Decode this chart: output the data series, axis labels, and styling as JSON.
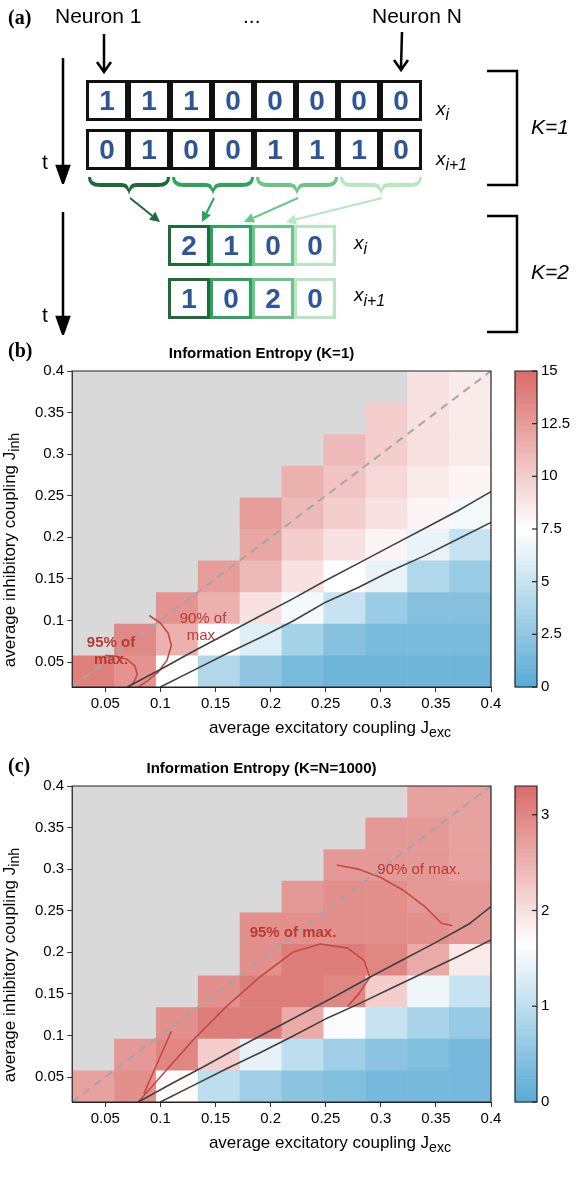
{
  "chart_data": [
    {
      "type": "other",
      "annotations": [
        "(a)",
        "Neuron 1",
        "...",
        "Neuron N",
        "t",
        "t",
        "K=1",
        "K=2",
        "x$_{i}$",
        "x$_{i+1}$",
        "x$_{i}$",
        "x$_{i+1}$",
        "1",
        "1",
        "1",
        "0",
        "0",
        "0",
        "0",
        "0",
        "0",
        "1",
        "0",
        "0",
        "1",
        "1",
        "1",
        "0",
        "2",
        "1",
        "0",
        "0",
        "1",
        "0",
        "2",
        "0"
      ]
    },
    {
      "type": "heatmap",
      "title": "Information Entropy (K=1)",
      "xlabel": "average excitatory coupling  J$_{exc}$",
      "ylabel": "average inhibitory coupling  J$_{inh}$",
      "annotations": [
        "(b)",
        "95% of\nmax.",
        "90% of\nmax."
      ],
      "x": [
        0.039,
        0.077,
        0.115,
        0.153,
        0.191,
        0.229,
        0.267,
        0.305,
        0.343,
        0.381
      ],
      "y": [
        0.381,
        0.343,
        0.305,
        0.267,
        0.229,
        0.191,
        0.153,
        0.115,
        0.077,
        0.039
      ],
      "cells": [
        [
          null,
          null,
          null,
          null,
          null,
          null,
          null,
          null,
          9,
          8.5
        ],
        [
          null,
          null,
          null,
          null,
          null,
          null,
          null,
          10,
          9,
          8.5
        ],
        [
          null,
          null,
          null,
          null,
          null,
          null,
          11,
          10,
          9,
          8.5
        ],
        [
          null,
          null,
          null,
          null,
          null,
          11.5,
          10.5,
          9.5,
          8.5,
          8
        ],
        [
          null,
          null,
          null,
          null,
          12.5,
          11,
          10,
          9,
          8,
          7
        ],
        [
          null,
          null,
          null,
          null,
          12,
          10,
          9,
          8,
          6.5,
          5
        ],
        [
          null,
          null,
          null,
          12.5,
          11,
          9,
          7.5,
          6.5,
          4,
          3
        ],
        [
          null,
          null,
          13,
          11.5,
          9,
          7,
          5,
          3,
          2,
          2
        ],
        [
          null,
          13.5,
          11.5,
          7.5,
          6,
          3.5,
          2,
          1.5,
          1.5,
          1.5
        ],
        [
          14,
          13,
          7.5,
          4,
          2.5,
          1.5,
          1,
          1,
          1,
          1
        ]
      ],
      "clim": [
        0,
        15
      ],
      "cticks": [
        0,
        2.5,
        5,
        7.5,
        10,
        12.5,
        15
      ],
      "xlim": [
        0.02,
        0.4
      ],
      "ylim": [
        0.02,
        0.4
      ],
      "xticks": [
        0.05,
        0.1,
        0.15,
        0.2,
        0.25,
        0.3,
        0.35,
        0.4
      ],
      "yticks": [
        0.05,
        0.1,
        0.15,
        0.2,
        0.25,
        0.3,
        0.35,
        0.4
      ],
      "series": [
        {
          "type": "line",
          "color": "#a6a6a6",
          "line_style": "dashed",
          "x": [
            0.02,
            0.4
          ],
          "values": [
            0.02,
            0.4
          ]
        },
        {
          "type": "line",
          "color": "#404040",
          "line_style": "solid",
          "x": [
            0.07,
            0.1,
            0.13,
            0.16,
            0.19,
            0.22,
            0.25,
            0.28,
            0.31,
            0.34,
            0.37,
            0.4
          ],
          "values": [
            0.02,
            0.041,
            0.063,
            0.084,
            0.105,
            0.126,
            0.148,
            0.169,
            0.19,
            0.211,
            0.232,
            0.255
          ]
        },
        {
          "type": "line",
          "color": "#404040",
          "line_style": "solid",
          "x": [
            0.1,
            0.13,
            0.16,
            0.19,
            0.22,
            0.25,
            0.28,
            0.31,
            0.34,
            0.37,
            0.4
          ],
          "values": [
            0.02,
            0.04,
            0.06,
            0.079,
            0.099,
            0.122,
            0.14,
            0.16,
            0.178,
            0.198,
            0.218
          ]
        },
        {
          "type": "line",
          "color": "#c44a45",
          "line_style": "solid",
          "x": [
            0.05,
            0.06,
            0.07,
            0.077,
            0.079,
            0.076,
            0.072
          ],
          "values": [
            0.058,
            0.057,
            0.053,
            0.045,
            0.035,
            0.026,
            0.02
          ]
        },
        {
          "type": "line",
          "color": "#c44a45",
          "line_style": "solid",
          "x": [
            0.09,
            0.1,
            0.107,
            0.11,
            0.106,
            0.098,
            0.088,
            0.08
          ],
          "values": [
            0.106,
            0.097,
            0.085,
            0.07,
            0.052,
            0.038,
            0.027,
            0.02
          ]
        }
      ]
    },
    {
      "type": "heatmap",
      "title": "Information Entropy (K=N=1000)",
      "xlabel": "average excitatory coupling  J$_{exc}$",
      "ylabel": "average inhibitory coupling  J$_{inh}$",
      "annotations": [
        "(c)",
        "95% of max.",
        "90% of max."
      ],
      "x": [
        0.039,
        0.077,
        0.115,
        0.153,
        0.191,
        0.229,
        0.267,
        0.305,
        0.343,
        0.381
      ],
      "y": [
        0.381,
        0.343,
        0.305,
        0.267,
        0.229,
        0.191,
        0.153,
        0.115,
        0.077,
        0.039
      ],
      "cells": [
        [
          null,
          null,
          null,
          null,
          null,
          null,
          null,
          null,
          2.7,
          2.7
        ],
        [
          null,
          null,
          null,
          null,
          null,
          null,
          null,
          2.8,
          2.8,
          2.7
        ],
        [
          null,
          null,
          null,
          null,
          null,
          null,
          2.8,
          2.8,
          2.8,
          2.7
        ],
        [
          null,
          null,
          null,
          null,
          null,
          2.8,
          2.9,
          2.9,
          2.8,
          2.8
        ],
        [
          null,
          null,
          null,
          null,
          2.9,
          2.9,
          2.9,
          2.9,
          2.9,
          2.8
        ],
        [
          null,
          null,
          null,
          null,
          2.9,
          3.1,
          3.1,
          3.0,
          2.6,
          1.9
        ],
        [
          null,
          null,
          null,
          2.9,
          3.1,
          3.1,
          3.0,
          2.2,
          1.5,
          1.1
        ],
        [
          null,
          null,
          2.9,
          3.1,
          3.1,
          2.6,
          1.6,
          1.1,
          0.8,
          0.6
        ],
        [
          null,
          2.8,
          3.0,
          2.2,
          1.4,
          1.0,
          0.7,
          0.5,
          0.4,
          0.3
        ],
        [
          2.7,
          2.9,
          1.7,
          1.0,
          0.7,
          0.5,
          0.4,
          0.3,
          0.3,
          0.3
        ]
      ],
      "clim": [
        0,
        3.3
      ],
      "cticks": [
        0,
        1,
        2,
        3
      ],
      "xlim": [
        0.02,
        0.4
      ],
      "ylim": [
        0.02,
        0.4
      ],
      "xticks": [
        0.05,
        0.1,
        0.15,
        0.2,
        0.25,
        0.3,
        0.35,
        0.4
      ],
      "yticks": [
        0.05,
        0.1,
        0.15,
        0.2,
        0.25,
        0.3,
        0.35,
        0.4
      ],
      "series": [
        {
          "type": "line",
          "color": "#a6a6a6",
          "line_style": "dashed",
          "x": [
            0.02,
            0.4
          ],
          "values": [
            0.02,
            0.4
          ]
        },
        {
          "type": "line",
          "color": "#404040",
          "line_style": "solid",
          "x": [
            0.08,
            0.11,
            0.14,
            0.17,
            0.2,
            0.23,
            0.26,
            0.29,
            0.32,
            0.35,
            0.38,
            0.4
          ],
          "values": [
            0.02,
            0.042,
            0.063,
            0.085,
            0.106,
            0.127,
            0.148,
            0.17,
            0.191,
            0.212,
            0.234,
            0.255
          ]
        },
        {
          "type": "line",
          "color": "#404040",
          "line_style": "solid",
          "x": [
            0.1,
            0.13,
            0.16,
            0.19,
            0.22,
            0.25,
            0.28,
            0.31,
            0.34,
            0.37,
            0.4
          ],
          "values": [
            0.02,
            0.04,
            0.06,
            0.079,
            0.099,
            0.12,
            0.138,
            0.157,
            0.176,
            0.195,
            0.215
          ]
        },
        {
          "type": "line",
          "color": "#c44a45",
          "line_style": "solid",
          "x": [
            0.08,
            0.1,
            0.13,
            0.16,
            0.19,
            0.22,
            0.245,
            0.27,
            0.285,
            0.29,
            0.28,
            0.27
          ],
          "values": [
            0.02,
            0.05,
            0.095,
            0.135,
            0.17,
            0.2,
            0.21,
            0.205,
            0.19,
            0.17,
            0.15,
            0.135
          ]
        },
        {
          "type": "line",
          "color": "#c44a45",
          "line_style": "solid",
          "x": [
            0.26,
            0.28,
            0.3,
            0.32,
            0.34,
            0.355,
            0.365
          ],
          "values": [
            0.305,
            0.3,
            0.29,
            0.275,
            0.255,
            0.235,
            0.232
          ]
        },
        {
          "type": "line",
          "color": "#c44a45",
          "line_style": "solid",
          "x": [
            0.085,
            0.095,
            0.105,
            0.11
          ],
          "values": [
            0.03,
            0.06,
            0.09,
            0.105
          ]
        }
      ]
    }
  ]
}
